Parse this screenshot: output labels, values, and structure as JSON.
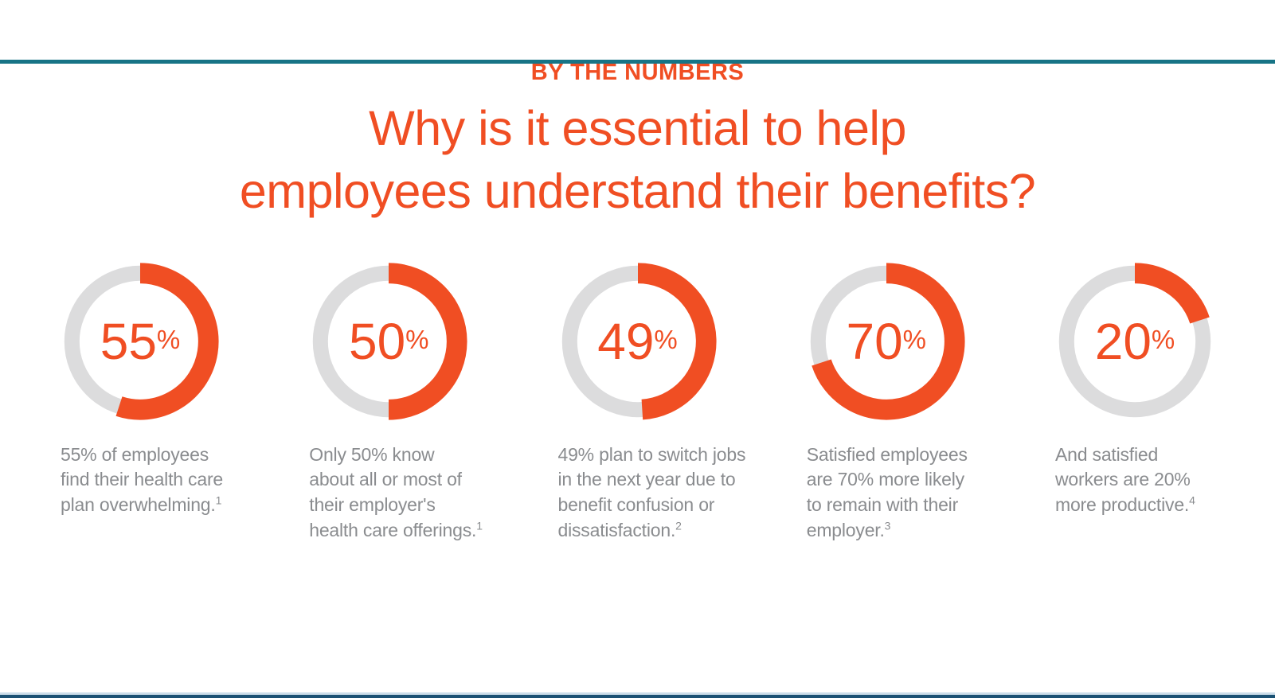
{
  "theme": {
    "accent_orange": "#F04E23",
    "track_gray": "#DCDCDD",
    "caption_gray": "#8A8C8F",
    "top_bar_teal": "#177486",
    "bottom_bar_light_blue": "#CBDDEA",
    "bottom_bar_navy": "#1A5174",
    "background": "#FFFFFF"
  },
  "header": {
    "eyebrow": "BY THE NUMBERS",
    "title": "Why is it essential to help\nemployees understand their benefits?"
  },
  "stats": {
    "items": [
      {
        "value": 55,
        "value_label": "55",
        "unit": "%",
        "caption": "55% of employees\nfind their health care\nplan overwhelming.",
        "footnote": "1"
      },
      {
        "value": 50,
        "value_label": "50",
        "unit": "%",
        "caption": "Only 50% know\nabout all or most of\ntheir employer's\nhealth care offerings.",
        "footnote": "1"
      },
      {
        "value": 49,
        "value_label": "49",
        "unit": "%",
        "caption": "49% plan to switch jobs\nin the next year due to\nbenefit confusion or\ndissatisfaction.",
        "footnote": "2"
      },
      {
        "value": 70,
        "value_label": "70",
        "unit": "%",
        "caption": "Satisfied employees\nare 70% more likely\nto remain with their\nemployer.",
        "footnote": "3"
      },
      {
        "value": 20,
        "value_label": "20",
        "unit": "%",
        "caption": "And satisfied\nworkers are 20%\nmore productive.",
        "footnote": "4"
      }
    ]
  },
  "chart_data": {
    "type": "pie",
    "variant": "donut",
    "subtitle": "BY THE NUMBERS",
    "title": "Why is it essential to help employees understand their benefits?",
    "start_angle_deg": -90,
    "direction": "clockwise",
    "colors": {
      "filled": "#F04E23",
      "track": "#DCDCDD"
    },
    "series": [
      {
        "name": "55% of employees find their health care plan overwhelming.",
        "value": 55,
        "footnote": "1"
      },
      {
        "name": "Only 50% know about all or most of their employer's health care offerings.",
        "value": 50,
        "footnote": "1"
      },
      {
        "name": "49% plan to switch jobs in the next year due to benefit confusion or dissatisfaction.",
        "value": 49,
        "footnote": "2"
      },
      {
        "name": "Satisfied employees are 70% more likely to remain with their employer.",
        "value": 70,
        "footnote": "3"
      },
      {
        "name": "And satisfied workers are 20% more productive.",
        "value": 20,
        "footnote": "4"
      }
    ]
  }
}
